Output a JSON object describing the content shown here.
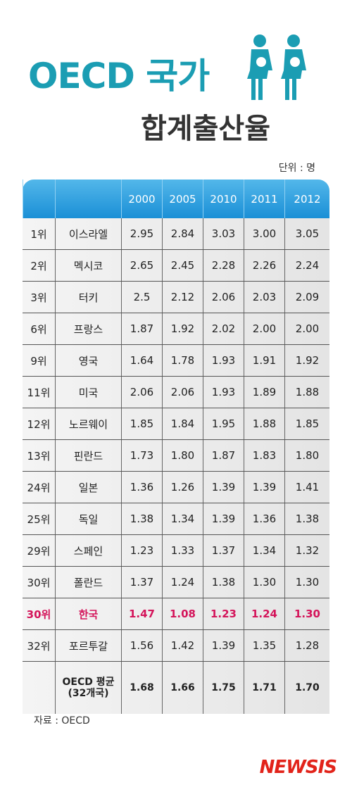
{
  "title": "OECD 국가",
  "subtitle": "합계출산율",
  "unit": "단위 : 명",
  "table": {
    "columns": [
      "2000",
      "2005",
      "2010",
      "2011",
      "2012"
    ],
    "rows": [
      [
        "1위",
        "이스라엘",
        "2.95",
        "2.84",
        "3.03",
        "3.00",
        "3.05"
      ],
      [
        "2위",
        "멕시코",
        "2.65",
        "2.45",
        "2.28",
        "2.26",
        "2.24"
      ],
      [
        "3위",
        "터키",
        "2.5",
        "2.12",
        "2.06",
        "2.03",
        "2.09"
      ],
      [
        "6위",
        "프랑스",
        "1.87",
        "1.92",
        "2.02",
        "2.00",
        "2.00"
      ],
      [
        "9위",
        "영국",
        "1.64",
        "1.78",
        "1.93",
        "1.91",
        "1.92"
      ],
      [
        "11위",
        "미국",
        "2.06",
        "2.06",
        "1.93",
        "1.89",
        "1.88"
      ],
      [
        "12위",
        "노르웨이",
        "1.85",
        "1.84",
        "1.95",
        "1.88",
        "1.85"
      ],
      [
        "13위",
        "핀란드",
        "1.73",
        "1.80",
        "1.87",
        "1.83",
        "1.80"
      ],
      [
        "24위",
        "일본",
        "1.36",
        "1.26",
        "1.39",
        "1.39",
        "1.41"
      ],
      [
        "25위",
        "독일",
        "1.38",
        "1.34",
        "1.39",
        "1.36",
        "1.38"
      ],
      [
        "29위",
        "스페인",
        "1.23",
        "1.33",
        "1.37",
        "1.34",
        "1.32"
      ],
      [
        "30위",
        "폴란드",
        "1.37",
        "1.24",
        "1.38",
        "1.30",
        "1.30"
      ],
      [
        "30위",
        "한국",
        "1.47",
        "1.08",
        "1.23",
        "1.24",
        "1.30"
      ],
      [
        "32위",
        "포르투갈",
        "1.56",
        "1.42",
        "1.39",
        "1.35",
        "1.28"
      ]
    ],
    "average": {
      "label": "OECD 평균",
      "sublabel": "(32개국)",
      "values": [
        "1.68",
        "1.66",
        "1.75",
        "1.71",
        "1.70"
      ]
    }
  },
  "source": "자료 : OECD",
  "logo": "NEWSIS"
}
